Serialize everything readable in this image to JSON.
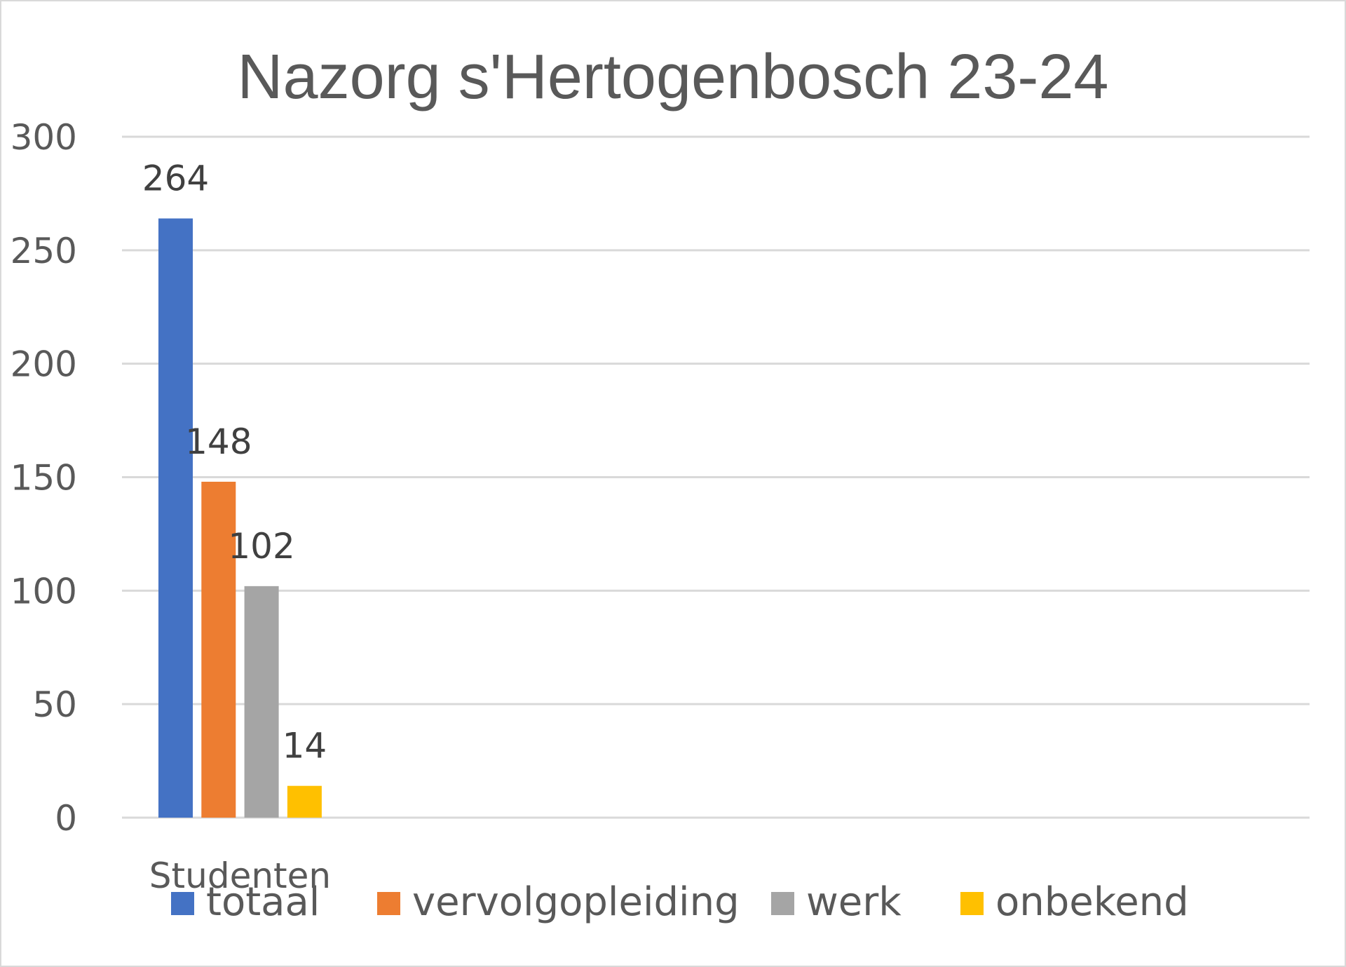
{
  "chart_data": {
    "type": "bar",
    "title": "Nazorg s'Hertogenbosch 23-24",
    "categories": [
      "Studenten"
    ],
    "series": [
      {
        "name": "totaal",
        "values": [
          264
        ],
        "color": "#4472C4"
      },
      {
        "name": "vervolgopleiding",
        "values": [
          148
        ],
        "color": "#ED7D31"
      },
      {
        "name": "werk",
        "values": [
          102
        ],
        "color": "#A5A5A5"
      },
      {
        "name": "onbekend",
        "values": [
          14
        ],
        "color": "#FFC000"
      }
    ],
    "ylim": [
      0,
      300
    ],
    "yticks": [
      "0",
      "50",
      "100",
      "150",
      "200",
      "250",
      "300"
    ],
    "grid": true,
    "legend": "bottom"
  }
}
